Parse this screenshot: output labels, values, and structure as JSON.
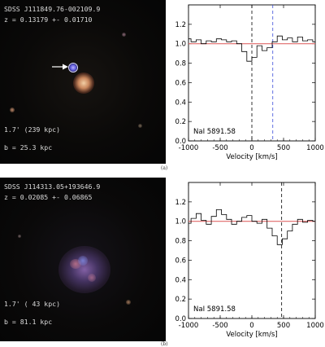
{
  "panels": [
    {
      "letter": "(a)",
      "object_name": "SDSS J111849.76-002109.9",
      "redshift": "z = 0.13179 +- 0.01710",
      "separation": "1.7' (239 kpc)",
      "impact": "b = 25.3 kpc",
      "line_label": "NaI 5891.58",
      "xlabel": "Velocity [km/s]",
      "xticks": [
        "-1000",
        "-500",
        "0",
        "500",
        "1000"
      ],
      "yticks": [
        "0.0",
        "0.2",
        "0.4",
        "0.6",
        "0.8",
        "1.0",
        "1.2"
      ],
      "colors": {
        "spectrum": "#000000",
        "continuum": "#e06a6a",
        "zero_line": "#000000",
        "galaxy_line": "#3a4bd8"
      }
    },
    {
      "letter": "(b)",
      "object_name": "SDSS J114313.05+193646.9",
      "redshift": "z = 0.02085 +- 0.06865",
      "separation": "1.7' ( 43 kpc)",
      "impact": "b = 81.1 kpc",
      "line_label": "NaI 5891.58",
      "xlabel": "Velocity [km/s]",
      "xticks": [
        "-1000",
        "-500",
        "0",
        "500",
        "1000"
      ],
      "yticks": [
        "0.0",
        "0.2",
        "0.4",
        "0.6",
        "0.8",
        "1.0",
        "1.2"
      ],
      "colors": {
        "spectrum": "#000000",
        "continuum": "#e06a6a",
        "zero_line": "#000000"
      }
    }
  ],
  "chart_data": [
    {
      "type": "line",
      "title": "",
      "xlabel": "Velocity [km/s]",
      "ylabel": "",
      "xlim": [
        -1000,
        1000
      ],
      "ylim": [
        0.0,
        1.4
      ],
      "continuum": 1.0,
      "vlines": [
        {
          "x": 0,
          "style": "dashed",
          "color": "#000000"
        },
        {
          "x": 330,
          "style": "dashed",
          "color": "#3a4bd8"
        }
      ],
      "series": [
        {
          "x": [
            -1000,
            -920,
            -840,
            -760,
            -680,
            -600,
            -520,
            -440,
            -360,
            -280,
            -200,
            -120,
            -40,
            40,
            120,
            200,
            280,
            360,
            440,
            520,
            600,
            680,
            760,
            840,
            920,
            1000
          ],
          "y": [
            1.05,
            1.02,
            1.04,
            1.0,
            1.03,
            1.02,
            1.05,
            1.04,
            1.02,
            1.03,
            1.0,
            0.92,
            0.82,
            0.86,
            0.98,
            0.93,
            0.96,
            1.02,
            1.08,
            1.04,
            1.06,
            1.02,
            1.07,
            1.03,
            1.04,
            1.02
          ]
        }
      ]
    },
    {
      "type": "line",
      "title": "",
      "xlabel": "Velocity [km/s]",
      "ylabel": "",
      "xlim": [
        -1000,
        1000
      ],
      "ylim": [
        0.0,
        1.4
      ],
      "continuum": 1.0,
      "vlines": [
        {
          "x": 470,
          "style": "dashed",
          "color": "#000000"
        }
      ],
      "series": [
        {
          "x": [
            -1000,
            -920,
            -840,
            -760,
            -680,
            -600,
            -520,
            -440,
            -360,
            -280,
            -200,
            -120,
            -40,
            40,
            120,
            200,
            280,
            360,
            440,
            520,
            600,
            680,
            760,
            840,
            920,
            1000
          ],
          "y": [
            0.98,
            1.03,
            1.08,
            1.01,
            0.97,
            1.05,
            1.12,
            1.07,
            1.02,
            0.97,
            1.0,
            1.04,
            1.06,
            1.0,
            0.98,
            1.02,
            0.93,
            0.85,
            0.76,
            0.82,
            0.9,
            0.97,
            1.02,
            0.99,
            1.01,
            1.0
          ]
        }
      ]
    }
  ]
}
